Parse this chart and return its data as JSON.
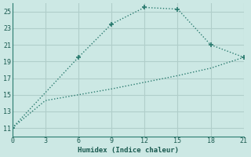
{
  "line1_x": [
    0,
    6,
    9,
    12,
    15,
    18,
    21
  ],
  "line1_y": [
    11,
    19.5,
    23.5,
    25.5,
    25.3,
    21,
    19.5
  ],
  "line2_x": [
    0,
    3,
    6,
    9,
    12,
    15,
    18,
    21
  ],
  "line2_y": [
    11,
    14.3,
    15.0,
    15.7,
    16.5,
    17.3,
    18.2,
    19.5
  ],
  "color": "#2a7b6f",
  "bg_color": "#cce8e4",
  "xlabel": "Humidex (Indice chaleur)",
  "xlim": [
    0,
    21
  ],
  "ylim": [
    10,
    26
  ],
  "xticks": [
    0,
    3,
    6,
    9,
    12,
    15,
    18,
    21
  ],
  "yticks": [
    11,
    13,
    15,
    17,
    19,
    21,
    23,
    25
  ],
  "grid_color": "#b0ceca"
}
